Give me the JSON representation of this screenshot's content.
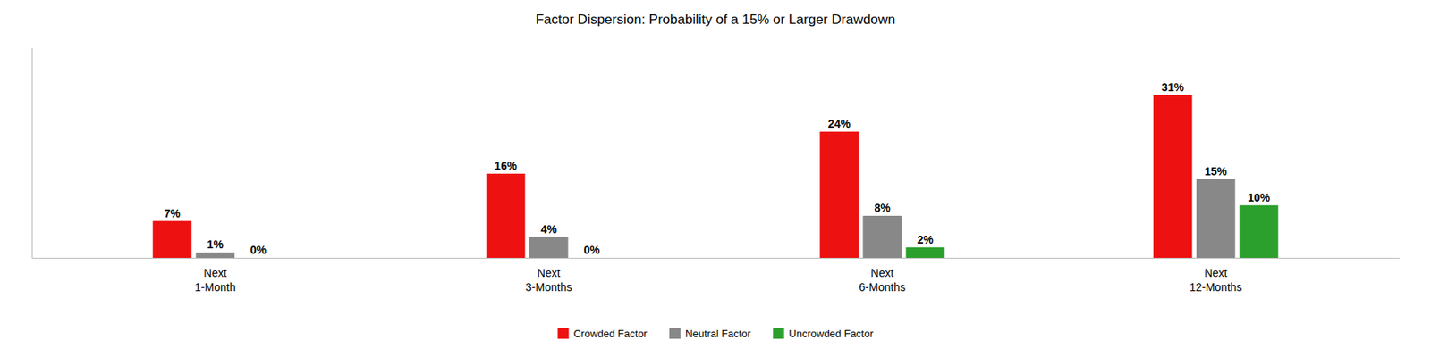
{
  "chart_data": {
    "type": "bar",
    "title": "Factor Dispersion: Probability of a 15% or Larger Drawdown",
    "categories": [
      "Next\n1-Month",
      "Next\n3-Months",
      "Next\n6-Months",
      "Next\n12-Months"
    ],
    "series": [
      {
        "name": "Crowded Factor",
        "color": "#ee1111",
        "values": [
          7,
          16,
          24,
          31
        ],
        "value_labels": [
          "7%",
          "16%",
          "24%",
          "31%"
        ]
      },
      {
        "name": "Neutral Factor",
        "color": "#888888",
        "values": [
          1,
          4,
          8,
          15
        ],
        "value_labels": [
          "1%",
          "4%",
          "8%",
          "15%"
        ]
      },
      {
        "name": "Uncrowded Factor",
        "color": "#2ca02c",
        "values": [
          0,
          0,
          2,
          10
        ],
        "value_labels": [
          "0%",
          "0%",
          "2%",
          "10%"
        ]
      }
    ],
    "ylim": [
      0,
      40
    ],
    "data_labels": true,
    "tick_labels": "x",
    "grid": false,
    "legend": "bottom"
  }
}
